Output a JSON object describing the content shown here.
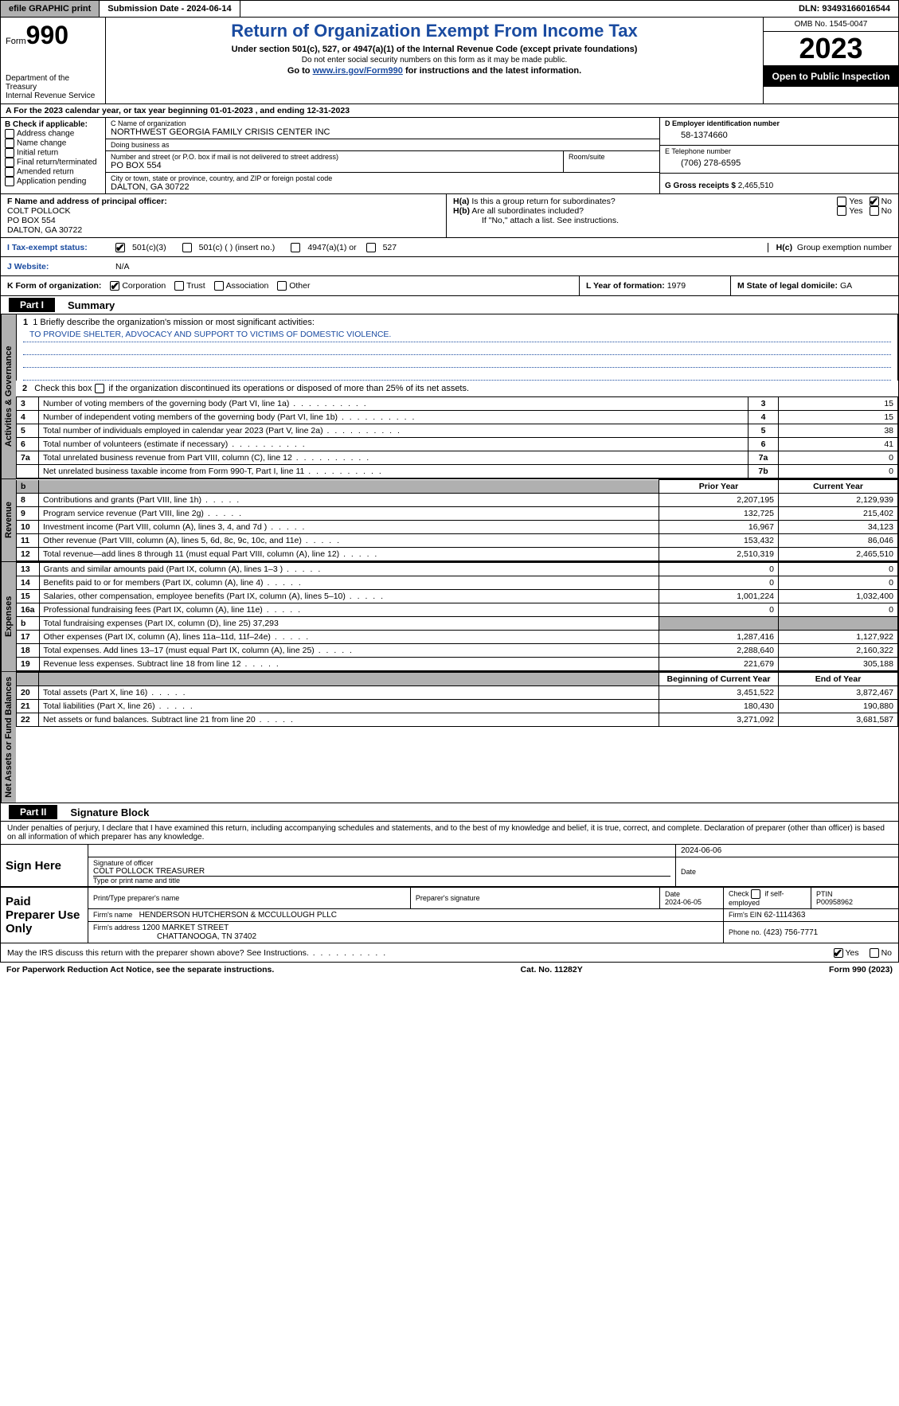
{
  "topbar": {
    "efile": "efile GRAPHIC print",
    "submission": "Submission Date - 2024-06-14",
    "dln": "DLN: 93493166016544"
  },
  "header": {
    "form_prefix": "Form",
    "form_number": "990",
    "dept": "Department of the Treasury\nInternal Revenue Service",
    "title": "Return of Organization Exempt From Income Tax",
    "sub1": "Under section 501(c), 527, or 4947(a)(1) of the Internal Revenue Code (except private foundations)",
    "sub2": "Do not enter social security numbers on this form as it may be made public.",
    "sub3_pre": "Go to ",
    "sub3_link": "www.irs.gov/Form990",
    "sub3_post": " for instructions and the latest information.",
    "omb": "OMB No. 1545-0047",
    "year": "2023",
    "open": "Open to Public Inspection"
  },
  "row_a": "A For the 2023 calendar year, or tax year beginning 01-01-2023    , and ending 12-31-2023",
  "col_b": {
    "title": "B Check if applicable:",
    "items": [
      "Address change",
      "Name change",
      "Initial return",
      "Final return/terminated",
      "Amended return",
      "Application pending"
    ]
  },
  "col_c": {
    "name_label": "C Name of organization",
    "name": "NORTHWEST GEORGIA FAMILY CRISIS CENTER INC",
    "dba_label": "Doing business as",
    "dba": "",
    "street_label": "Number and street (or P.O. box if mail is not delivered to street address)",
    "street": "PO BOX 554",
    "room_label": "Room/suite",
    "city_label": "City or town, state or province, country, and ZIP or foreign postal code",
    "city": "DALTON, GA  30722"
  },
  "col_de": {
    "d_label": "D Employer identification number",
    "d_val": "58-1374660",
    "e_label": "E Telephone number",
    "e_val": "(706) 278-6595",
    "g_label": "G Gross receipts $ ",
    "g_val": "2,465,510"
  },
  "officer": {
    "f_label": "F  Name and address of principal officer:",
    "name": "COLT POLLOCK",
    "addr1": "PO BOX 554",
    "addr2": "DALTON, GA  30722"
  },
  "h_block": {
    "ha_label": "H(a)  Is this a group return for subordinates?",
    "hb_label": "H(b)  Are all subordinates included?",
    "hb_note": "If \"No,\" attach a list. See instructions.",
    "hc_label": "H(c)  Group exemption number",
    "yes": "Yes",
    "no": "No"
  },
  "tax_exempt": {
    "i_label": "I  Tax-exempt status:",
    "opt1": "501(c)(3)",
    "opt2": "501(c) (   ) (insert no.)",
    "opt3": "4947(a)(1) or",
    "opt4": "527"
  },
  "website": {
    "j_label": "J  Website:",
    "val": "N/A"
  },
  "row_k": {
    "k_label": "K Form of organization:",
    "opts": [
      "Corporation",
      "Trust",
      "Association",
      "Other"
    ],
    "l_label": "L Year of formation: ",
    "l_val": "1979",
    "m_label": "M State of legal domicile: ",
    "m_val": "GA"
  },
  "part1": {
    "hdr": "Part I",
    "title": "Summary",
    "line1_label": "1  Briefly describe the organization's mission or most significant activities:",
    "line1_val": "TO PROVIDE SHELTER, ADVOCACY AND SUPPORT TO VICTIMS OF DOMESTIC VIOLENCE.",
    "line2": "2    Check this box          if the organization discontinued its operations or disposed of more than 25% of its net assets.",
    "vtabs": {
      "gov": "Activities & Governance",
      "rev": "Revenue",
      "exp": "Expenses",
      "net": "Net Assets or Fund Balances"
    },
    "gov_rows": [
      {
        "n": "3",
        "d": "Number of voting members of the governing body (Part VI, line 1a)",
        "box": "3",
        "v": "15"
      },
      {
        "n": "4",
        "d": "Number of independent voting members of the governing body (Part VI, line 1b)",
        "box": "4",
        "v": "15"
      },
      {
        "n": "5",
        "d": "Total number of individuals employed in calendar year 2023 (Part V, line 2a)",
        "box": "5",
        "v": "38"
      },
      {
        "n": "6",
        "d": "Total number of volunteers (estimate if necessary)",
        "box": "6",
        "v": "41"
      },
      {
        "n": "7a",
        "d": "Total unrelated business revenue from Part VIII, column (C), line 12",
        "box": "7a",
        "v": "0"
      },
      {
        "n": "",
        "d": "Net unrelated business taxable income from Form 990-T, Part I, line 11",
        "box": "7b",
        "v": "0"
      }
    ],
    "col_hdr_prior": "Prior Year",
    "col_hdr_current": "Current Year",
    "rev_rows": [
      {
        "n": "8",
        "d": "Contributions and grants (Part VIII, line 1h)",
        "p": "2,207,195",
        "c": "2,129,939"
      },
      {
        "n": "9",
        "d": "Program service revenue (Part VIII, line 2g)",
        "p": "132,725",
        "c": "215,402"
      },
      {
        "n": "10",
        "d": "Investment income (Part VIII, column (A), lines 3, 4, and 7d )",
        "p": "16,967",
        "c": "34,123"
      },
      {
        "n": "11",
        "d": "Other revenue (Part VIII, column (A), lines 5, 6d, 8c, 9c, 10c, and 11e)",
        "p": "153,432",
        "c": "86,046"
      },
      {
        "n": "12",
        "d": "Total revenue—add lines 8 through 11 (must equal Part VIII, column (A), line 12)",
        "p": "2,510,319",
        "c": "2,465,510"
      }
    ],
    "exp_rows": [
      {
        "n": "13",
        "d": "Grants and similar amounts paid (Part IX, column (A), lines 1–3 )",
        "p": "0",
        "c": "0"
      },
      {
        "n": "14",
        "d": "Benefits paid to or for members (Part IX, column (A), line 4)",
        "p": "0",
        "c": "0"
      },
      {
        "n": "15",
        "d": "Salaries, other compensation, employee benefits (Part IX, column (A), lines 5–10)",
        "p": "1,001,224",
        "c": "1,032,400"
      },
      {
        "n": "16a",
        "d": "Professional fundraising fees (Part IX, column (A), line 11e)",
        "p": "0",
        "c": "0"
      },
      {
        "n": "b",
        "d": "Total fundraising expenses (Part IX, column (D), line 25) 37,293",
        "p": "",
        "c": "",
        "shaded": true
      },
      {
        "n": "17",
        "d": "Other expenses (Part IX, column (A), lines 11a–11d, 11f–24e)",
        "p": "1,287,416",
        "c": "1,127,922"
      },
      {
        "n": "18",
        "d": "Total expenses. Add lines 13–17 (must equal Part IX, column (A), line 25)",
        "p": "2,288,640",
        "c": "2,160,322"
      },
      {
        "n": "19",
        "d": "Revenue less expenses. Subtract line 18 from line 12",
        "p": "221,679",
        "c": "305,188"
      }
    ],
    "col_hdr_begin": "Beginning of Current Year",
    "col_hdr_end": "End of Year",
    "net_rows": [
      {
        "n": "20",
        "d": "Total assets (Part X, line 16)",
        "p": "3,451,522",
        "c": "3,872,467"
      },
      {
        "n": "21",
        "d": "Total liabilities (Part X, line 26)",
        "p": "180,430",
        "c": "190,880"
      },
      {
        "n": "22",
        "d": "Net assets or fund balances. Subtract line 21 from line 20",
        "p": "3,271,092",
        "c": "3,681,587"
      }
    ]
  },
  "part2": {
    "hdr": "Part II",
    "title": "Signature Block",
    "decl": "Under penalties of perjury, I declare that I have examined this return, including accompanying schedules and statements, and to the best of my knowledge and belief, it is true, correct, and complete. Declaration of preparer (other than officer) is based on all information of which preparer has any knowledge."
  },
  "sign": {
    "here": "Sign Here",
    "sig_officer_label": "Signature of officer",
    "officer_name": "COLT POLLOCK  TREASURER",
    "name_title_label": "Type or print name and title",
    "date_label": "Date",
    "date_top": "2024-06-06"
  },
  "preparer": {
    "title": "Paid Preparer Use Only",
    "name_label": "Print/Type preparer's name",
    "sig_label": "Preparer's signature",
    "date_label": "Date",
    "date": "2024-06-05",
    "check_label": "Check         if self-employed",
    "ptin_label": "PTIN",
    "ptin": "P00958962",
    "firm_name_label": "Firm's name",
    "firm_name": "HENDERSON HUTCHERSON & MCCULLOUGH PLLC",
    "firm_ein_label": "Firm's EIN",
    "firm_ein": "62-1114363",
    "firm_addr_label": "Firm's address",
    "firm_addr1": "1200 MARKET STREET",
    "firm_addr2": "CHATTANOOGA, TN  37402",
    "phone_label": "Phone no.",
    "phone": "(423) 756-7771"
  },
  "discuss": {
    "q": "May the IRS discuss this return with the preparer shown above? See Instructions.",
    "yes": "Yes",
    "no": "No"
  },
  "footer": {
    "left": "For Paperwork Reduction Act Notice, see the separate instructions.",
    "mid": "Cat. No. 11282Y",
    "right_pre": "Form ",
    "right_form": "990",
    "right_post": " (2023)"
  },
  "colors": {
    "link": "#1a4ba0",
    "shade": "#b0b0b0"
  }
}
